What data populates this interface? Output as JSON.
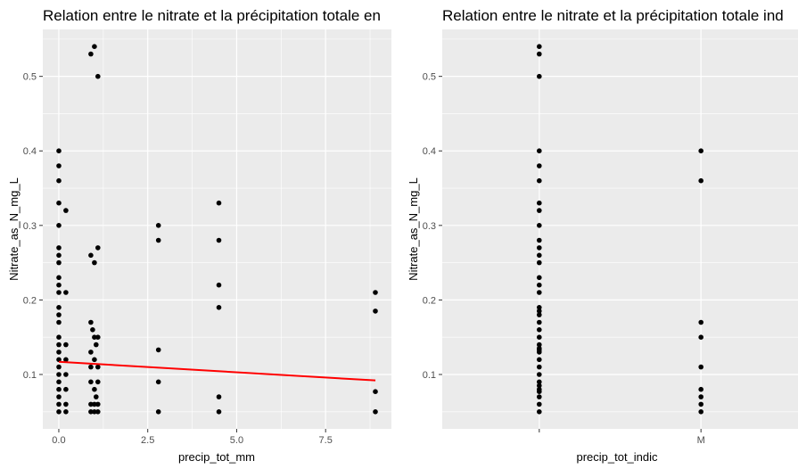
{
  "chart_data": [
    {
      "type": "scatter",
      "title": "Relation entre le nitrate et la précipitation totale en",
      "xlabel": "precip_tot_mm",
      "ylabel": "Nitrate_as_N_mg_L",
      "xlim": [
        -0.45,
        9.35
      ],
      "ylim": [
        0.027,
        0.563
      ],
      "x_ticks": [
        0,
        2.5,
        5,
        7.5
      ],
      "x_tick_labels": [
        "0.0",
        "2.5",
        "5.0",
        "7.5"
      ],
      "y_ticks": [
        0.1,
        0.2,
        0.3,
        0.4,
        0.5
      ],
      "y_tick_labels": [
        "0.1",
        "0.2",
        "0.3",
        "0.4",
        "0.5"
      ],
      "grid": true,
      "points": [
        [
          0,
          0.4
        ],
        [
          0,
          0.38
        ],
        [
          0,
          0.36
        ],
        [
          0,
          0.33
        ],
        [
          0,
          0.3
        ],
        [
          0,
          0.27
        ],
        [
          0,
          0.26
        ],
        [
          0,
          0.25
        ],
        [
          0,
          0.23
        ],
        [
          0,
          0.22
        ],
        [
          0,
          0.21
        ],
        [
          0,
          0.19
        ],
        [
          0,
          0.18
        ],
        [
          0,
          0.17
        ],
        [
          0,
          0.15
        ],
        [
          0,
          0.14
        ],
        [
          0,
          0.13
        ],
        [
          0,
          0.12
        ],
        [
          0,
          0.11
        ],
        [
          0,
          0.1
        ],
        [
          0,
          0.09
        ],
        [
          0,
          0.08
        ],
        [
          0,
          0.07
        ],
        [
          0,
          0.06
        ],
        [
          0,
          0.05
        ],
        [
          0.2,
          0.32
        ],
        [
          0.2,
          0.21
        ],
        [
          0.2,
          0.14
        ],
        [
          0.2,
          0.12
        ],
        [
          0.2,
          0.1
        ],
        [
          0.2,
          0.08
        ],
        [
          0.2,
          0.06
        ],
        [
          0.2,
          0.05
        ],
        [
          0.9,
          0.53
        ],
        [
          0.9,
          0.26
        ],
        [
          0.9,
          0.17
        ],
        [
          0.9,
          0.13
        ],
        [
          0.9,
          0.11
        ],
        [
          0.9,
          0.09
        ],
        [
          0.9,
          0.06
        ],
        [
          0.9,
          0.05
        ],
        [
          1.0,
          0.54
        ],
        [
          1.0,
          0.25
        ],
        [
          1.0,
          0.15
        ],
        [
          1.0,
          0.12
        ],
        [
          1.0,
          0.08
        ],
        [
          1.0,
          0.06
        ],
        [
          1.0,
          0.05
        ],
        [
          1.1,
          0.5
        ],
        [
          1.1,
          0.27
        ],
        [
          1.1,
          0.15
        ],
        [
          1.1,
          0.11
        ],
        [
          1.1,
          0.09
        ],
        [
          1.1,
          0.06
        ],
        [
          1.1,
          0.05
        ],
        [
          0.95,
          0.16
        ],
        [
          1.05,
          0.14
        ],
        [
          1.05,
          0.07
        ],
        [
          2.8,
          0.3
        ],
        [
          2.8,
          0.28
        ],
        [
          2.8,
          0.133
        ],
        [
          2.8,
          0.09
        ],
        [
          2.8,
          0.05
        ],
        [
          4.5,
          0.33
        ],
        [
          4.5,
          0.28
        ],
        [
          4.5,
          0.22
        ],
        [
          4.5,
          0.19
        ],
        [
          4.5,
          0.07
        ],
        [
          4.5,
          0.05
        ],
        [
          8.9,
          0.21
        ],
        [
          8.9,
          0.185
        ],
        [
          8.9,
          0.077
        ],
        [
          8.9,
          0.05
        ]
      ],
      "trend_line": {
        "x": [
          0,
          8.9
        ],
        "y": [
          0.117,
          0.092
        ],
        "color": "#ff0000"
      },
      "point_color": "#000000",
      "panel_background": "#ebebeb",
      "grid_color": "#ffffff"
    },
    {
      "type": "scatter",
      "title": "Relation entre le nitrate et la précipitation totale ind",
      "xlabel": "precip_tot_indic",
      "ylabel": "Nitrate_as_N_mg_L",
      "categories": [
        "",
        "M"
      ],
      "ylim": [
        0.027,
        0.563
      ],
      "y_ticks": [
        0.1,
        0.2,
        0.3,
        0.4,
        0.5
      ],
      "y_tick_labels": [
        "0.1",
        "0.2",
        "0.3",
        "0.4",
        "0.5"
      ],
      "grid": true,
      "series": [
        {
          "category": "",
          "values": [
            0.54,
            0.53,
            0.5,
            0.4,
            0.38,
            0.36,
            0.33,
            0.32,
            0.3,
            0.28,
            0.27,
            0.26,
            0.25,
            0.23,
            0.22,
            0.21,
            0.19,
            0.185,
            0.18,
            0.17,
            0.16,
            0.15,
            0.14,
            0.135,
            0.133,
            0.13,
            0.12,
            0.11,
            0.1,
            0.09,
            0.085,
            0.08,
            0.077,
            0.07,
            0.06,
            0.05
          ]
        },
        {
          "category": "M",
          "values": [
            0.4,
            0.36,
            0.17,
            0.15,
            0.11,
            0.08,
            0.07,
            0.06,
            0.05
          ]
        }
      ],
      "point_color": "#000000",
      "panel_background": "#ebebeb",
      "grid_color": "#ffffff"
    }
  ]
}
